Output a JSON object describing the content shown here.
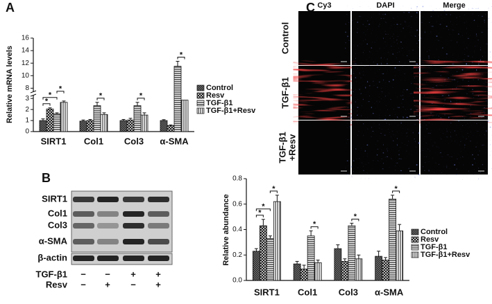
{
  "chart_data": [
    {
      "type": "bar",
      "label": "A",
      "ylabel": "Relative mRNA levels",
      "categories": [
        "SIRT1",
        "Col1",
        "Col3",
        "α-SMA"
      ],
      "series": [
        {
          "name": "Control",
          "pattern": "checker",
          "values": [
            1.0,
            0.95,
            1.0,
            1.0
          ],
          "errors": [
            0.15,
            0.1,
            0.1,
            0.08
          ]
        },
        {
          "name": "Resv",
          "pattern": "cross",
          "values": [
            2.05,
            1.0,
            1.05,
            0.55
          ],
          "errors": [
            0.1,
            0.1,
            0.15,
            0.05
          ]
        },
        {
          "name": "TGF-β1",
          "pattern": "hlines",
          "values": [
            1.6,
            2.35,
            2.35,
            11.5
          ],
          "errors": [
            0.1,
            0.3,
            0.3,
            0.8
          ]
        },
        {
          "name": "TGF-β1+Resv",
          "pattern": "vlines",
          "values": [
            2.65,
            1.55,
            1.5,
            2.85
          ],
          "errors": [
            0.12,
            0.15,
            0.2,
            0.6
          ]
        }
      ],
      "ylim": [
        0,
        16
      ],
      "ybreak": [
        3.2,
        7.6
      ],
      "yticks": [
        0,
        1,
        2,
        3,
        8,
        10,
        12,
        14,
        16
      ],
      "significance": [
        {
          "text": "*",
          "category": 0,
          "pair": [
            0,
            1
          ]
        },
        {
          "text": "*",
          "category": 0,
          "pair": [
            0,
            2
          ]
        },
        {
          "text": "*",
          "category": 0,
          "pair": [
            2,
            3
          ]
        },
        {
          "text": "*",
          "category": 1,
          "pair": [
            2,
            3
          ]
        },
        {
          "text": "*",
          "category": 2,
          "pair": [
            2,
            3
          ]
        },
        {
          "text": "*",
          "category": 3,
          "pair": [
            2,
            3
          ]
        }
      ]
    },
    {
      "type": "bar",
      "ylabel": "Relative abundance",
      "categories": [
        "SIRT1",
        "Col1",
        "Col3",
        "α-SMA"
      ],
      "series": [
        {
          "name": "Control",
          "pattern": "checker",
          "values": [
            0.23,
            0.13,
            0.25,
            0.19
          ],
          "errors": [
            0.02,
            0.02,
            0.03,
            0.04
          ]
        },
        {
          "name": "Resv",
          "pattern": "cross",
          "values": [
            0.43,
            0.09,
            0.15,
            0.16
          ],
          "errors": [
            0.05,
            0.03,
            0.02,
            0.02
          ]
        },
        {
          "name": "TGF-β1",
          "pattern": "hlines",
          "values": [
            0.33,
            0.35,
            0.43,
            0.64
          ],
          "errors": [
            0.02,
            0.04,
            0.02,
            0.03
          ]
        },
        {
          "name": "TGF-β1+Resv",
          "pattern": "vlines",
          "values": [
            0.62,
            0.14,
            0.17,
            0.39
          ],
          "errors": [
            0.05,
            0.02,
            0.03,
            0.05
          ]
        }
      ],
      "ylim": [
        0,
        0.8
      ],
      "yticks": [
        {
          "value": 0,
          "label": "0.0"
        },
        {
          "value": 0.2,
          "label": "0.2"
        },
        {
          "value": 0.4,
          "label": "0.4"
        },
        {
          "value": 0.6,
          "label": "0.6"
        },
        {
          "value": 0.8,
          "label": "0.8"
        }
      ],
      "significance": [
        {
          "text": "*",
          "category": 0,
          "pair": [
            0,
            1
          ]
        },
        {
          "text": "*",
          "category": 0,
          "pair": [
            0,
            2
          ]
        },
        {
          "text": "*",
          "category": 0,
          "pair": [
            2,
            3
          ]
        },
        {
          "text": "*",
          "category": 1,
          "pair": [
            2,
            3
          ]
        },
        {
          "text": "*",
          "category": 2,
          "pair": [
            2,
            3
          ]
        },
        {
          "text": "*",
          "category": 3,
          "pair": [
            2,
            3
          ]
        }
      ]
    }
  ],
  "blot": {
    "label": "B",
    "rows": [
      "SIRT1",
      "Col1",
      "Col3",
      "α-SMA",
      "β-actin"
    ],
    "treatments": [
      {
        "name": "TGF-β1",
        "signs": [
          "−",
          "−",
          "+",
          "+"
        ]
      },
      {
        "name": "Resv",
        "signs": [
          "−",
          "+",
          "−",
          "+"
        ]
      }
    ]
  },
  "micrographs": {
    "label": "C",
    "columns": [
      "Cy3",
      "DAPI",
      "Merge"
    ],
    "rows": [
      [
        "Control"
      ],
      [
        "TGF-β1"
      ],
      [
        "TGF-β1",
        "+Resv"
      ]
    ]
  }
}
